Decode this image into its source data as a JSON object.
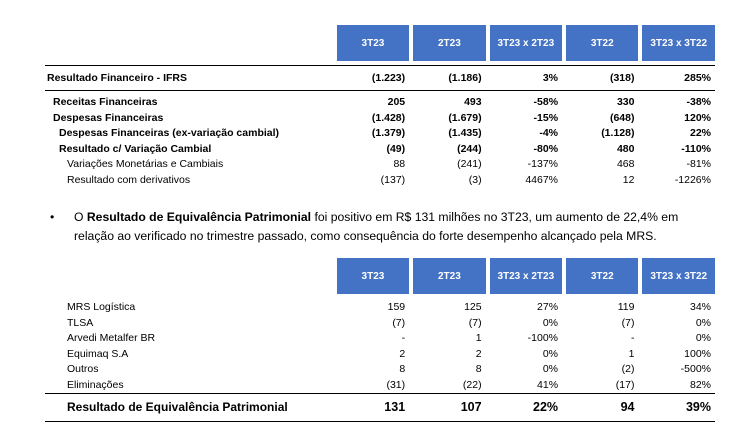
{
  "table1": {
    "headers": [
      "3T23",
      "2T23",
      "3T23 x 2T23",
      "3T22",
      "3T23 x 3T22"
    ],
    "main_row": {
      "label": "Resultado Financeiro - IFRS",
      "values": [
        "(1.223)",
        "(1.186)",
        "3%",
        "(318)",
        "285%"
      ]
    },
    "rows": [
      {
        "label": "Receitas Financeiras",
        "values": [
          "205",
          "493",
          "-58%",
          "330",
          "-38%"
        ]
      },
      {
        "label": "Despesas Financeiras",
        "values": [
          "(1.428)",
          "(1.679)",
          "-15%",
          "(648)",
          "120%"
        ]
      },
      {
        "label": "Despesas Financeiras (ex-variação cambial)",
        "values": [
          "(1.379)",
          "(1.435)",
          "-4%",
          "(1.128)",
          "22%"
        ]
      },
      {
        "label": "Resultado c/ Variação Cambial",
        "values": [
          "(49)",
          "(244)",
          "-80%",
          "480",
          "-110%"
        ]
      },
      {
        "label": "Variações Monetárias e Cambiais",
        "values": [
          "88",
          "(241)",
          "-137%",
          "468",
          "-81%"
        ]
      },
      {
        "label": "Resultado com derivativos",
        "values": [
          "(137)",
          "(3)",
          "4467%",
          "12",
          "-1226%"
        ]
      }
    ]
  },
  "paragraph": {
    "bullet": "•",
    "pre": "O ",
    "bold": "Resultado de Equivalência Patrimonial",
    "post": " foi positivo em R$ 131 milhões no 3T23, um aumento de 22,4% em relação ao verificado no trimestre passado, como consequência do forte desempenho alcançado pela MRS."
  },
  "table2": {
    "headers": [
      "3T23",
      "2T23",
      "3T23 x 2T23",
      "3T22",
      "3T23 x 3T22"
    ],
    "rows": [
      {
        "label": "MRS Logística",
        "values": [
          "159",
          "125",
          "27%",
          "119",
          "34%"
        ]
      },
      {
        "label": "TLSA",
        "values": [
          "(7)",
          "(7)",
          "0%",
          "(7)",
          "0%"
        ]
      },
      {
        "label": "Arvedi Metalfer BR",
        "values": [
          "-",
          "1",
          "-100%",
          "-",
          "0%"
        ]
      },
      {
        "label": "Equimaq S.A",
        "values": [
          "2",
          "2",
          "0%",
          "1",
          "100%"
        ]
      },
      {
        "label": "Outros",
        "values": [
          "8",
          "8",
          "0%",
          "(2)",
          "-500%"
        ]
      },
      {
        "label": "Eliminações",
        "values": [
          "(31)",
          "(22)",
          "41%",
          "(17)",
          "82%"
        ]
      }
    ],
    "total": {
      "label": "Resultado de Equivalência Patrimonial",
      "values": [
        "131",
        "107",
        "22%",
        "94",
        "39%"
      ]
    }
  }
}
